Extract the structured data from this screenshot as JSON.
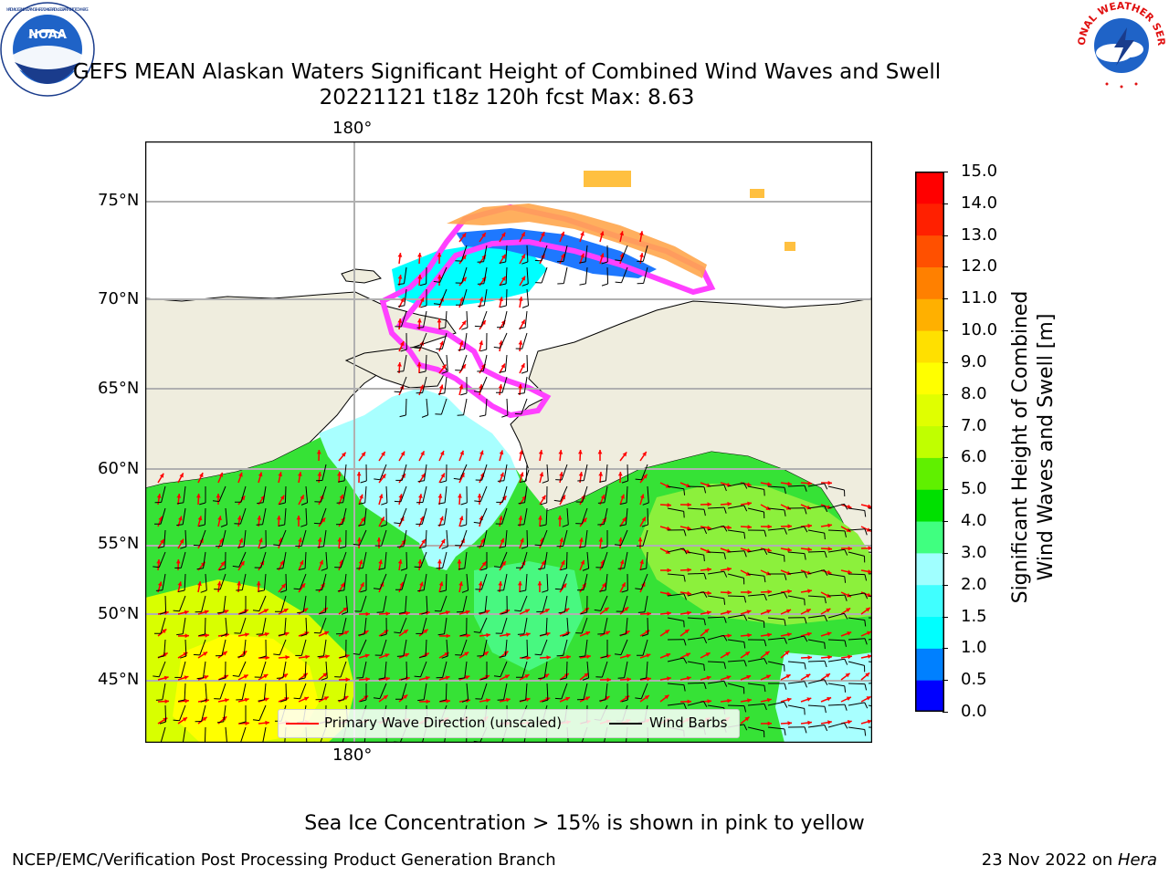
{
  "header": {
    "title_line1": "GEFS MEAN Alaskan Waters Significant Height of Combined Wind Waves and Swell",
    "title_line2": "20221121 t18z 120h fcst   Max: 8.63",
    "left_logo_text": "NOAA",
    "left_logo_ring_text": "NATIONAL OCEANIC AND ATMOSPHERIC ADMINISTRATION · U.S. DEPARTMENT OF COMMERCE",
    "right_logo_ring_text": "NATIONAL WEATHER SERVICE"
  },
  "map": {
    "lon_label_top": "180°",
    "lon_label_bottom": "180°",
    "lat_labels": [
      "75°N",
      "70°N",
      "65°N",
      "60°N",
      "55°N",
      "50°N",
      "45°N"
    ],
    "colors": {
      "land": "#efedde",
      "ocean_bg": "#36e236",
      "ice_edge": "#ff40ff",
      "ice_fill": "#ffa64d",
      "wave_arrow": "#ff0000",
      "wind_barb": "#000000"
    }
  },
  "legend": {
    "items": [
      {
        "label": "Primary Wave Direction (unscaled)",
        "color": "#ff0000"
      },
      {
        "label": "Wind Barbs",
        "color": "#000000"
      }
    ]
  },
  "colorbar": {
    "label_line1": "Significant Height of Combined",
    "label_line2": "Wind Waves and Swell [m]",
    "ticks": [
      "15.0",
      "14.0",
      "13.0",
      "12.0",
      "11.0",
      "10.0",
      "9.0",
      "8.0",
      "7.0",
      "6.0",
      "5.0",
      "4.0",
      "3.0",
      "2.0",
      "1.5",
      "1.0",
      "0.5",
      "0.0"
    ],
    "colors_bottom_to_top": [
      "#0000ff",
      "#0080ff",
      "#00ffff",
      "#40ffff",
      "#a0ffff",
      "#40ff80",
      "#00e000",
      "#60f000",
      "#c0ff00",
      "#e0ff00",
      "#ffff00",
      "#ffe000",
      "#ffb000",
      "#ff8000",
      "#ff5000",
      "#ff2000",
      "#ff0000"
    ]
  },
  "footer": {
    "note": "Sea Ice Concentration > 15% is shown in pink to yellow",
    "left": "NCEP/EMC/Verification Post Processing Product Generation Branch",
    "right_prefix": "23 Nov 2022 on ",
    "right_host": "Hera"
  }
}
